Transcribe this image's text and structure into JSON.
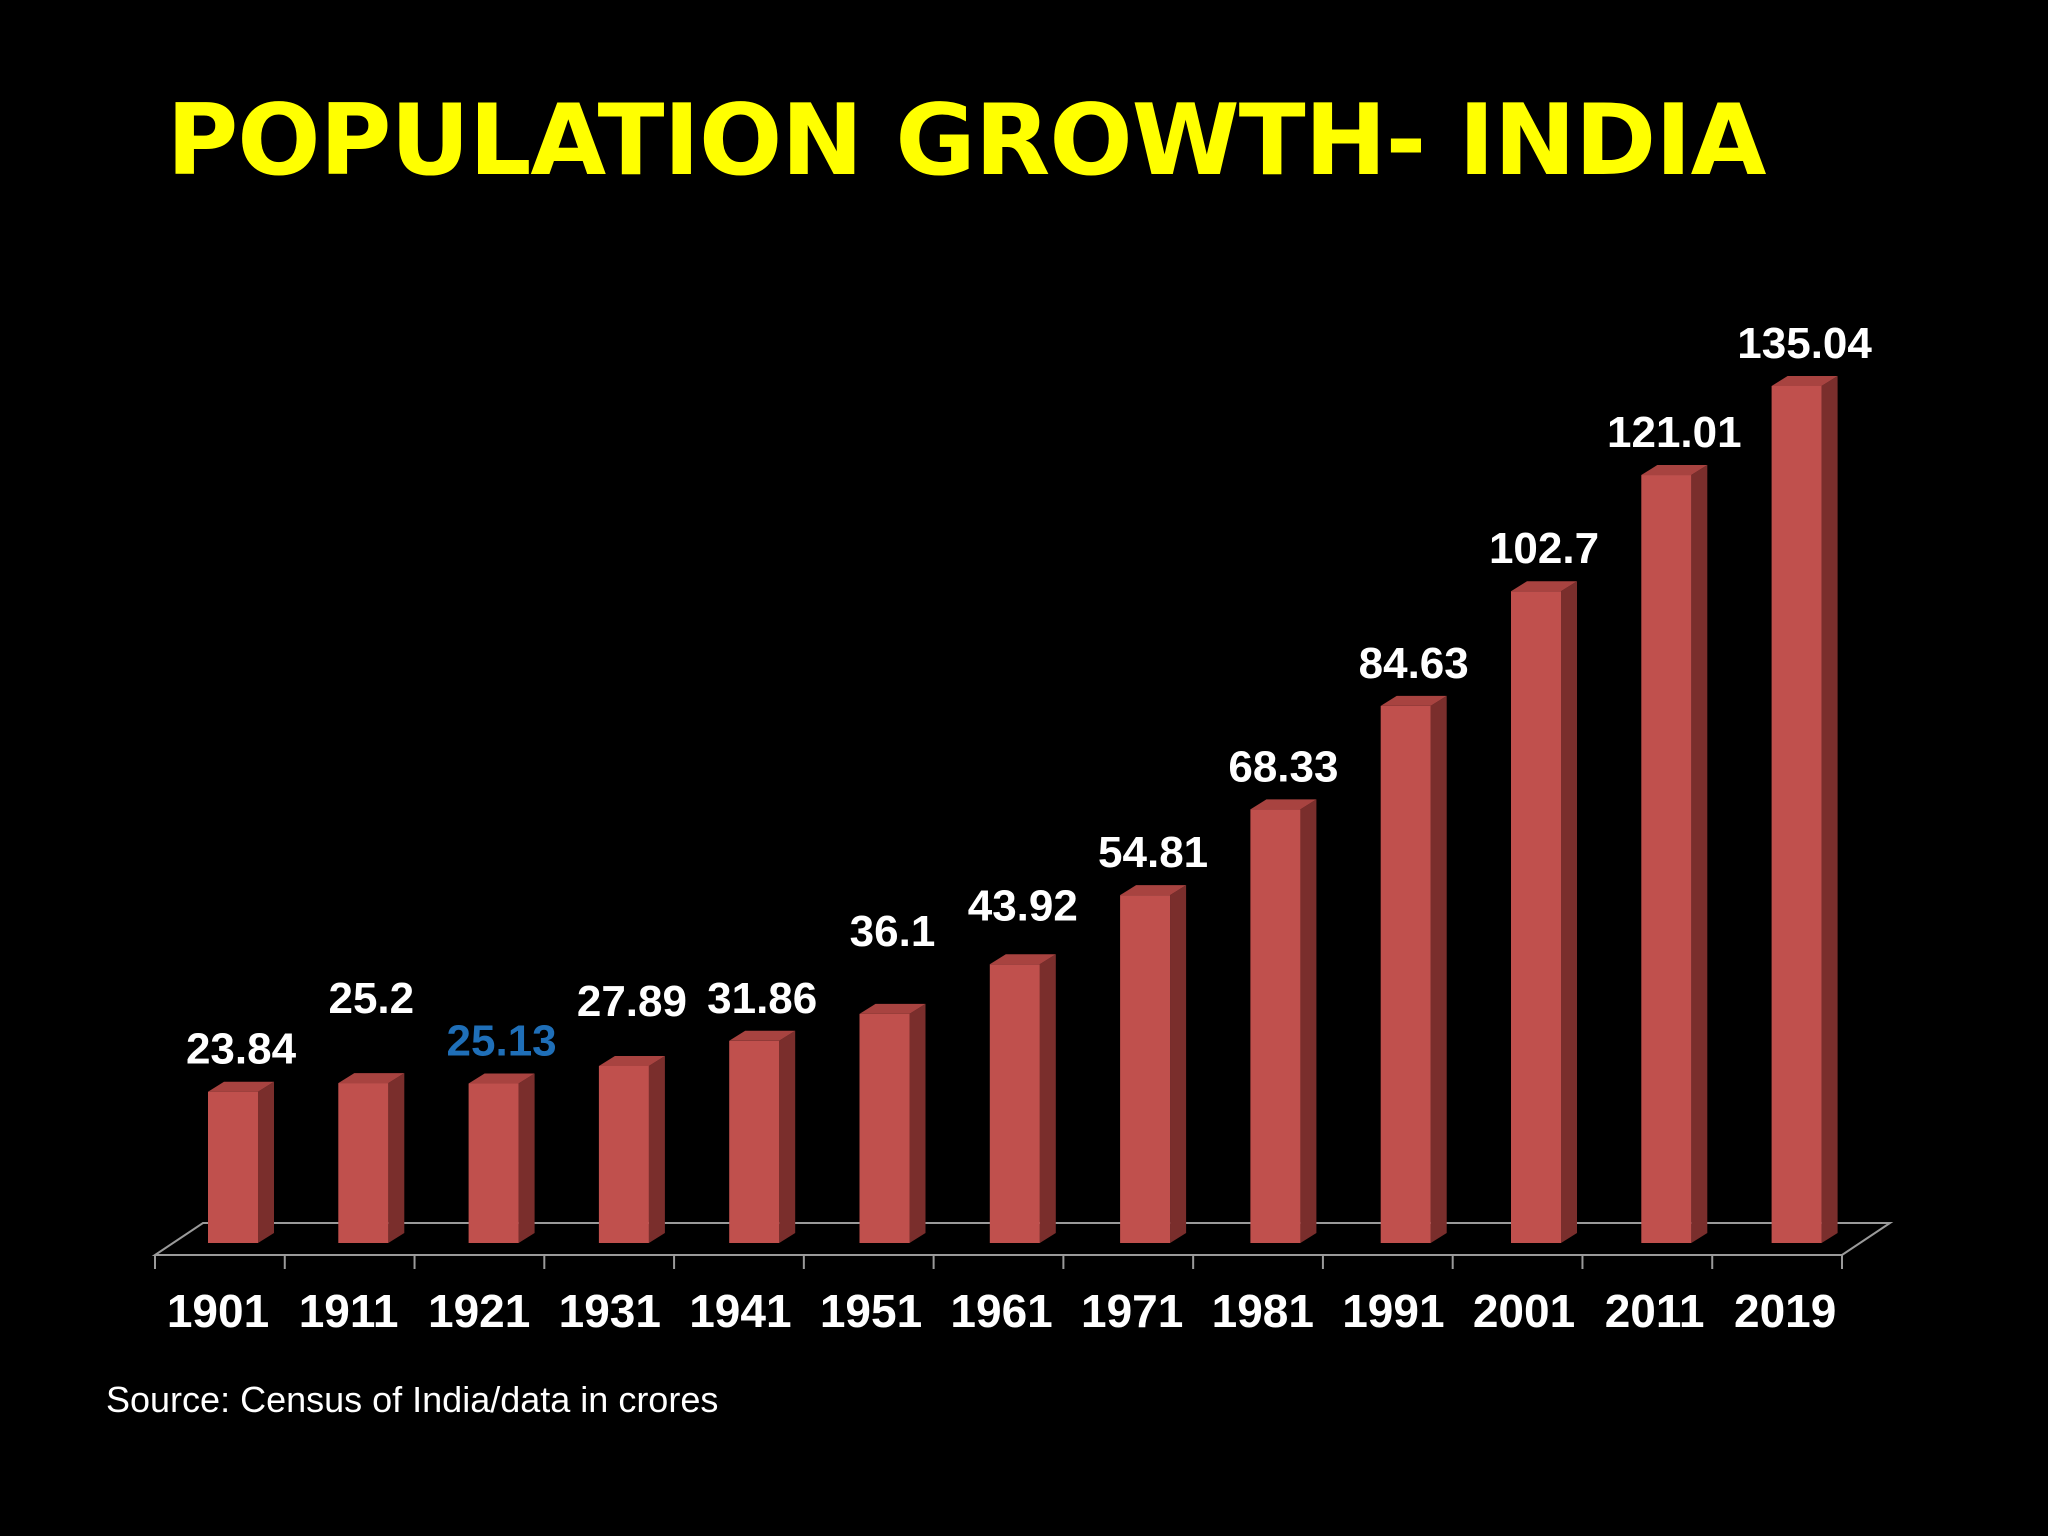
{
  "slide": {
    "title": "POPULATION GROWTH- INDIA",
    "source_note": "Source: Census of India/data in crores"
  },
  "colors": {
    "background": "#000000",
    "title": "#ffff00",
    "bar_front": "#c0504d",
    "bar_side": "#7a2e2c",
    "bar_top": "#a84340",
    "label": "#ffffff",
    "label_highlight": "#1f6fb8",
    "floor_line": "#9a9a9a"
  },
  "chart_data": {
    "type": "bar",
    "title": "POPULATION GROWTH- INDIA",
    "xlabel": "",
    "ylabel": "",
    "categories": [
      "1901",
      "1911",
      "1921",
      "1931",
      "1941",
      "1951",
      "1961",
      "1971",
      "1981",
      "1991",
      "2001",
      "2011",
      "2019"
    ],
    "series": [
      {
        "values": [
          23.84,
          25.2,
          25.13,
          27.89,
          31.86,
          36.1,
          43.92,
          54.81,
          68.33,
          84.63,
          102.7,
          121.01,
          135.04
        ]
      }
    ],
    "data_labels": [
      "23.84",
      "25.2",
      "25.13",
      "27.89",
      "31.86",
      "36.1",
      "43.92",
      "54.81",
      "68.33",
      "84.63",
      "102.7",
      "121.01",
      "135.04"
    ],
    "highlighted_label_index": 2,
    "ylim": [
      0,
      135.04
    ],
    "grid": false,
    "legend": "none",
    "style": "3d-column"
  }
}
